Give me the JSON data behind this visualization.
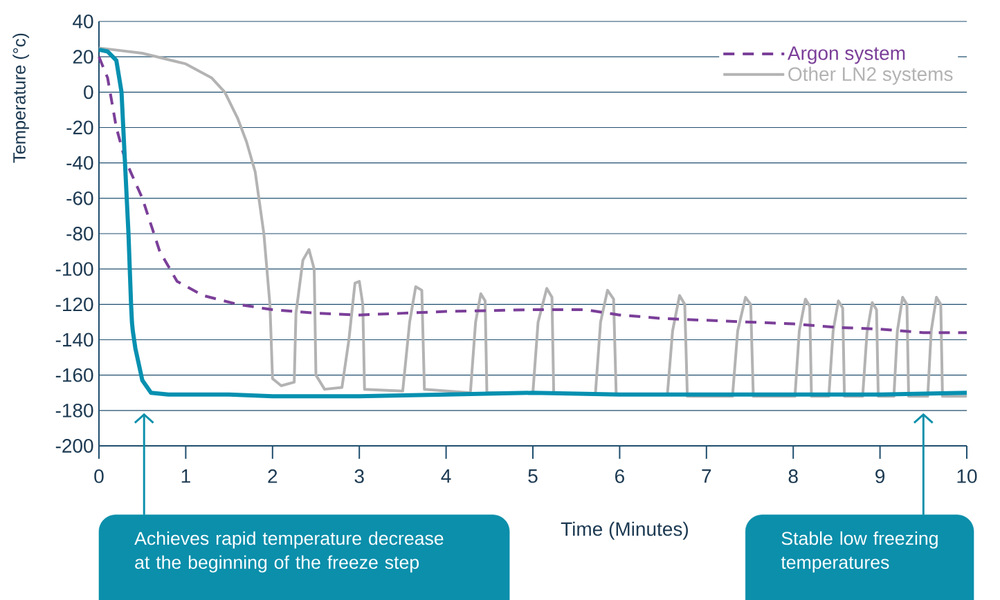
{
  "chart_data": {
    "type": "line",
    "xlabel": "Time (Minutes)",
    "ylabel": "Temperature (°c)",
    "xlim": [
      0,
      10
    ],
    "ylim": [
      -200,
      40
    ],
    "xticks": [
      0,
      1,
      2,
      3,
      4,
      5,
      6,
      7,
      8,
      9,
      10
    ],
    "yticks": [
      -200,
      -180,
      -160,
      -140,
      -120,
      -100,
      -80,
      -60,
      -40,
      -20,
      0,
      20,
      40
    ],
    "grid": "y",
    "legend": "top right",
    "series": [
      {
        "name": "Argon system",
        "color": "#7b3f99",
        "line_style": "dashed",
        "x": [
          0,
          0.1,
          0.2,
          0.3,
          0.5,
          0.7,
          0.9,
          1.2,
          1.6,
          2,
          2.5,
          3,
          3.5,
          4,
          5,
          5.6,
          6,
          6.5,
          7,
          8,
          8.5,
          9,
          9.5,
          10
        ],
        "values": [
          20,
          8,
          -20,
          -38,
          -60,
          -90,
          -107,
          -115,
          -120,
          -123,
          -125,
          -126,
          -125,
          -124,
          -123,
          -123,
          -126,
          -128,
          -129,
          -131,
          -133,
          -134,
          -136,
          -136
        ]
      },
      {
        "color": "#0790b0",
        "line_style": "solid",
        "x": [
          0,
          0.1,
          0.2,
          0.26,
          0.3,
          0.34,
          0.37,
          0.38,
          0.39,
          0.42,
          0.5,
          0.6,
          0.8,
          1.5,
          2,
          3,
          4,
          5,
          6,
          7,
          8,
          9,
          10
        ],
        "values": [
          24,
          23,
          18,
          0,
          -40,
          -80,
          -120,
          -130,
          -135,
          -145,
          -163,
          -170,
          -171,
          -171,
          -172,
          -172,
          -171,
          -170,
          -171,
          -171,
          -171,
          -171,
          -170
        ]
      },
      {
        "name": "Other LN2 systems",
        "color": "#b3b3b3",
        "line_style": "solid",
        "x": [
          0,
          0.5,
          1,
          1.3,
          1.45,
          1.6,
          1.7,
          1.8,
          1.9,
          1.97,
          2.0,
          2.1,
          2.25,
          2.27,
          2.35,
          2.42,
          2.48,
          2.5,
          2.6,
          2.8,
          2.88,
          2.95,
          3.0,
          3.04,
          3.06,
          3.5,
          3.58,
          3.65,
          3.72,
          3.75,
          4.28,
          4.34,
          4.4,
          4.45,
          4.47,
          5.0,
          5.06,
          5.16,
          5.22,
          5.24,
          5.72,
          5.78,
          5.86,
          5.93,
          5.96,
          6.55,
          6.61,
          6.69,
          6.75,
          6.78,
          7.3,
          7.36,
          7.45,
          7.51,
          7.54,
          8.02,
          8.07,
          8.14,
          8.19,
          8.21,
          8.41,
          8.46,
          8.52,
          8.57,
          8.59,
          8.8,
          8.85,
          8.91,
          8.96,
          8.98,
          9.16,
          9.2,
          9.26,
          9.31,
          9.33,
          9.55,
          9.59,
          9.65,
          9.7,
          9.72,
          10
        ],
        "values": [
          25,
          22,
          16,
          8,
          0,
          -15,
          -28,
          -45,
          -80,
          -120,
          -162,
          -166,
          -164,
          -125,
          -95,
          -89,
          -100,
          -160,
          -168,
          -167,
          -140,
          -108,
          -107,
          -120,
          -168,
          -169,
          -130,
          -110,
          -112,
          -168,
          -170,
          -130,
          -114,
          -118,
          -170,
          -170,
          -130,
          -111,
          -116,
          -170,
          -171,
          -130,
          -112,
          -117,
          -171,
          -171,
          -135,
          -115,
          -120,
          -172,
          -172,
          -135,
          -116,
          -120,
          -172,
          -172,
          -135,
          -117,
          -121,
          -172,
          -172,
          -135,
          -118,
          -122,
          -172,
          -172,
          -136,
          -119,
          -123,
          -172,
          -172,
          -135,
          -116,
          -120,
          -172,
          -172,
          -135,
          -116,
          -120,
          -172,
          -172
        ]
      }
    ],
    "annotations": [
      "Achieves rapid temperature decrease at the beginning of the freeze step",
      "Stable low freezing temperatures"
    ]
  }
}
